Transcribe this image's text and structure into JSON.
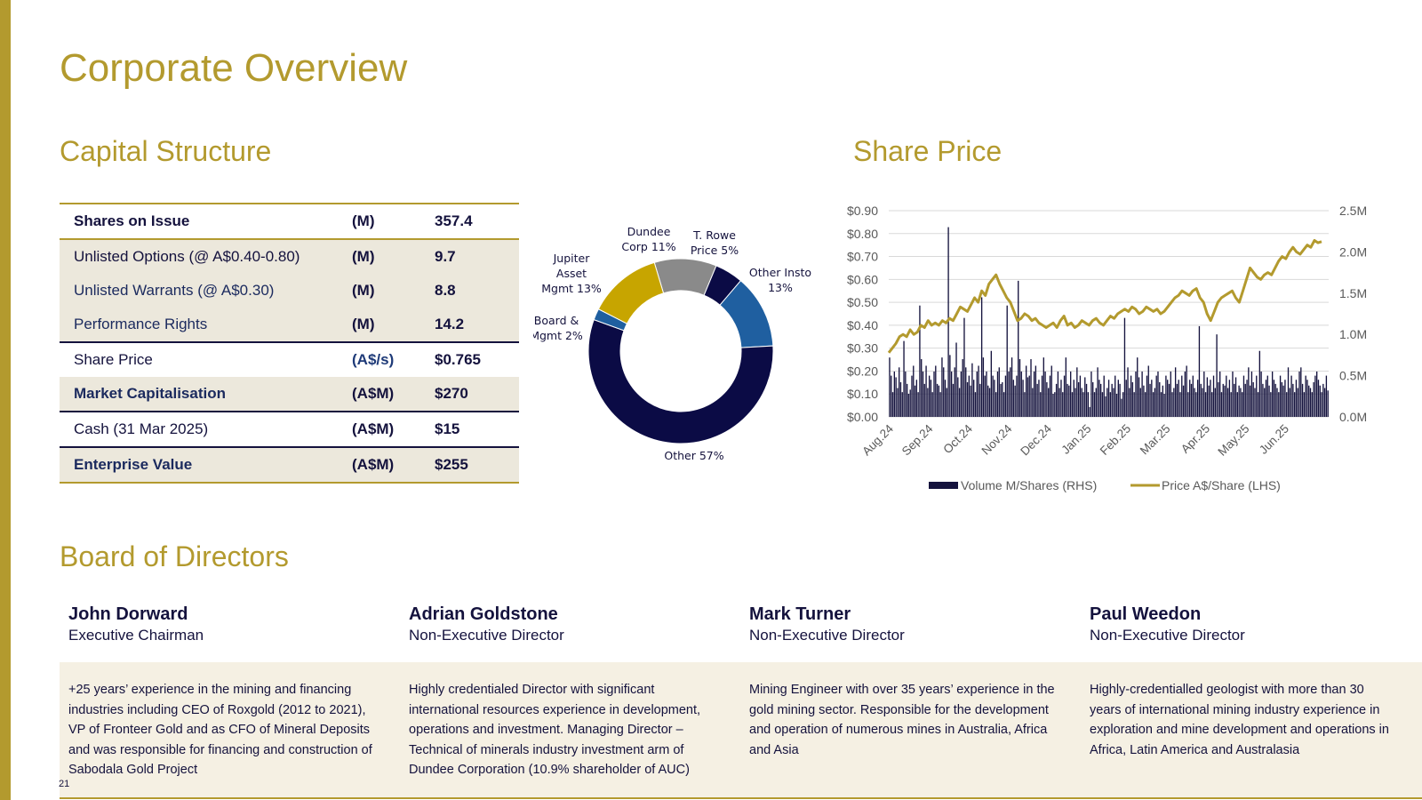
{
  "page": {
    "title": "Corporate Overview",
    "page_number": "21",
    "colors": {
      "gold": "#b39a2e",
      "navy": "#0b0b45",
      "cream": "#f5f0e3"
    }
  },
  "capital": {
    "heading": "Capital Structure",
    "rows": [
      {
        "label": "Shares on Issue",
        "unit": "(M)",
        "value": "357.4"
      },
      {
        "label": "Unlisted Options (@ A$0.40-0.80)",
        "unit": "(M)",
        "value": "9.7"
      },
      {
        "label": "Unlisted Warrants (@ A$0.30)",
        "unit": "(M)",
        "value": "8.8"
      },
      {
        "label": "Performance Rights",
        "unit": "(M)",
        "value": "14.2"
      },
      {
        "label": "Share Price",
        "unit": "(A$/s)",
        "value": "$0.765"
      },
      {
        "label": "Market Capitalisation",
        "unit": "(A$M)",
        "value": "$270"
      },
      {
        "label": "Cash (31 Mar 2025)",
        "unit": "(A$M)",
        "value": "$15"
      },
      {
        "label": "Enterprise Value",
        "unit": "(A$M)",
        "value": "$255"
      }
    ]
  },
  "share_price": {
    "heading": "Share Price"
  },
  "chart_data": [
    {
      "type": "pie",
      "title": "",
      "donut": true,
      "slices": [
        {
          "label": "Dundee Corp 11%",
          "value": 11,
          "color": "#8a8a8a"
        },
        {
          "label": "T. Rowe Price 5%",
          "value": 5,
          "color": "#0b0b45"
        },
        {
          "label": "Other Insto 13%",
          "value": 13,
          "color": "#1f5fa0"
        },
        {
          "label": "Other 57%",
          "value": 57,
          "color": "#0b0b45"
        },
        {
          "label": "Board & Mgmt 2%",
          "value": 2,
          "color": "#1f5fa0"
        },
        {
          "label": "Jupiter Asset Mgmt 13%",
          "value": 13,
          "color": "#c7a500"
        }
      ]
    },
    {
      "type": "line",
      "title": "",
      "x_ticks": [
        "Aug.24",
        "Sep.24",
        "Oct.24",
        "Nov.24",
        "Dec.24",
        "Jan.25",
        "Feb.25",
        "Mar.25",
        "Apr.25",
        "May.25",
        "Jun.25"
      ],
      "y_left_ticks": [
        "$0.90",
        "$0.80",
        "$0.70",
        "$0.60",
        "$0.50",
        "$0.40",
        "$0.30",
        "$0.20",
        "$0.10",
        "$0.00"
      ],
      "y_right_ticks": [
        "2.5M",
        "2.0M",
        "1.5M",
        "1.0M",
        "0.5M",
        "0.0M"
      ],
      "ylim_left": [
        0,
        0.9
      ],
      "ylim_right": [
        0,
        2.5
      ],
      "legend_position": "bottom",
      "series": [
        {
          "name": "Volume M/Shares (RHS)",
          "kind": "bar",
          "axis": "right",
          "color": "#14123d",
          "values": [
            0.72,
            0.5,
            0.3,
            0.55,
            0.48,
            0.35,
            0.6,
            0.42,
            0.3,
            0.92,
            0.55,
            0.4,
            0.28,
            0.33,
            0.5,
            0.62,
            0.38,
            0.45,
            0.3,
            1.35,
            0.7,
            0.55,
            0.4,
            0.62,
            0.35,
            0.5,
            0.45,
            0.3,
            0.55,
            0.62,
            0.4,
            0.38,
            0.3,
            0.72,
            0.6,
            0.45,
            0.35,
            2.3,
            0.75,
            0.55,
            0.4,
            0.6,
            0.9,
            0.48,
            0.35,
            0.55,
            0.7,
            1.2,
            0.6,
            0.42,
            0.5,
            0.38,
            0.65,
            0.45,
            0.3,
            0.55,
            0.62,
            0.4,
            1.45,
            0.72,
            0.5,
            0.55,
            0.38,
            0.35,
            0.8,
            0.5,
            0.45,
            0.3,
            0.55,
            0.6,
            0.4,
            0.42,
            0.3,
            0.5,
            1.35,
            0.55,
            0.6,
            0.72,
            0.45,
            0.38,
            0.5,
            1.65,
            0.7,
            0.55,
            0.45,
            0.3,
            0.62,
            0.48,
            0.5,
            0.7,
            0.35,
            0.55,
            0.62,
            0.4,
            0.45,
            0.3,
            0.5,
            0.72,
            0.55,
            0.42,
            0.35,
            0.5,
            0.62,
            0.28,
            0.3,
            0.4,
            0.55,
            0.35,
            0.45,
            0.3,
            0.5,
            0.72,
            0.4,
            0.38,
            0.55,
            0.3,
            0.45,
            0.35,
            0.6,
            0.42,
            0.5,
            0.35,
            0.3,
            0.48,
            0.4,
            0.3,
            0.12,
            0.55,
            0.42,
            0.3,
            0.35,
            0.6,
            0.45,
            0.4,
            0.3,
            0.5,
            0.25,
            0.35,
            0.45,
            0.3,
            0.4,
            0.35,
            0.5,
            0.28,
            0.45,
            0.4,
            0.22,
            0.3,
            1.2,
            0.45,
            0.6,
            0.35,
            0.5,
            0.42,
            0.3,
            0.55,
            0.72,
            0.48,
            0.35,
            0.55,
            0.38,
            0.3,
            0.5,
            0.62,
            0.4,
            0.45,
            0.3,
            0.35,
            0.5,
            0.55,
            0.42,
            0.3,
            0.38,
            0.28,
            0.5,
            0.45,
            0.4,
            0.55,
            0.3,
            0.35,
            0.6,
            0.4,
            0.45,
            0.3,
            0.5,
            0.38,
            0.55,
            0.62,
            0.3,
            0.45,
            0.4,
            0.5,
            0.35,
            0.3,
            0.45,
            1.1,
            0.4,
            0.35,
            0.55,
            0.3,
            0.48,
            0.38,
            0.45,
            0.3,
            0.5,
            0.35,
            1.0,
            0.42,
            0.55,
            0.3,
            0.4,
            0.38,
            0.5,
            0.35,
            0.45,
            0.3,
            0.55,
            0.4,
            0.48,
            0.3,
            0.38,
            0.35,
            0.3,
            0.5,
            0.4,
            0.45,
            0.6,
            0.38,
            0.55,
            0.42,
            0.35,
            0.5,
            0.3,
            0.8,
            0.55,
            0.4,
            0.35,
            0.45,
            0.5,
            0.38,
            0.3,
            0.55,
            0.45,
            0.4,
            0.35,
            0.3,
            0.5,
            0.42,
            0.38,
            0.45,
            0.3,
            0.6,
            0.35,
            0.5,
            0.4,
            0.3,
            0.45,
            0.35,
            0.55,
            0.6,
            0.4,
            0.3,
            0.5,
            0.45,
            0.38,
            0.35,
            0.3,
            0.42,
            0.5,
            0.55,
            0.45,
            0.38,
            0.3,
            0.4,
            0.35,
            0.5,
            0.32
          ],
          "note": ""
        },
        {
          "name": "Price A$/Share (LHS)",
          "kind": "line",
          "axis": "left",
          "color": "#b39a2e",
          "values": [
            0.28,
            0.3,
            0.32,
            0.35,
            0.36,
            0.35,
            0.38,
            0.36,
            0.37,
            0.4,
            0.39,
            0.42,
            0.4,
            0.41,
            0.4,
            0.42,
            0.41,
            0.43,
            0.42,
            0.45,
            0.48,
            0.47,
            0.46,
            0.49,
            0.52,
            0.5,
            0.55,
            0.53,
            0.58,
            0.6,
            0.62,
            0.58,
            0.55,
            0.52,
            0.5,
            0.46,
            0.42,
            0.43,
            0.45,
            0.44,
            0.42,
            0.43,
            0.41,
            0.4,
            0.39,
            0.4,
            0.41,
            0.39,
            0.42,
            0.44,
            0.4,
            0.41,
            0.39,
            0.4,
            0.42,
            0.41,
            0.4,
            0.42,
            0.43,
            0.41,
            0.4,
            0.42,
            0.44,
            0.43,
            0.45,
            0.46,
            0.47,
            0.46,
            0.48,
            0.47,
            0.45,
            0.46,
            0.48,
            0.47,
            0.46,
            0.47,
            0.45,
            0.46,
            0.48,
            0.5,
            0.52,
            0.53,
            0.55,
            0.54,
            0.53,
            0.55,
            0.56,
            0.52,
            0.5,
            0.45,
            0.42,
            0.46,
            0.5,
            0.52,
            0.53,
            0.54,
            0.55,
            0.52,
            0.5,
            0.55,
            0.6,
            0.65,
            0.63,
            0.61,
            0.6,
            0.62,
            0.63,
            0.62,
            0.65,
            0.68,
            0.7,
            0.69,
            0.72,
            0.74,
            0.72,
            0.71,
            0.73,
            0.75,
            0.74,
            0.77,
            0.76,
            0.765
          ]
        }
      ]
    }
  ],
  "directors": {
    "heading": "Board of Directors",
    "people": [
      {
        "name": "John Dorward",
        "role": "Executive Chairman",
        "bio": "+25 years’ experience in the mining and financing industries including CEO of Roxgold (2012 to 2021), VP of Fronteer Gold and as CFO of Mineral Deposits and was responsible for financing and construction of Sabodala Gold Project"
      },
      {
        "name": "Adrian Goldstone",
        "role": "Non-Executive Director",
        "bio": "Highly credentialed Director with significant international resources experience in development, operations and investment. Managing Director – Technical of minerals industry investment arm of Dundee Corporation (10.9% shareholder of AUC)"
      },
      {
        "name": "Mark Turner",
        "role": "Non-Executive Director",
        "bio": "Mining Engineer with over 35 years’ experience in the gold mining sector. Responsible for the development and operation of numerous mines in Australia, Africa and Asia"
      },
      {
        "name": "Paul Weedon",
        "role": "Non-Executive Director",
        "bio": "Highly-credentialled geologist with more than 30 years of international mining industry experience in exploration and mine development and operations in Africa, Latin America and Australasia"
      }
    ]
  }
}
